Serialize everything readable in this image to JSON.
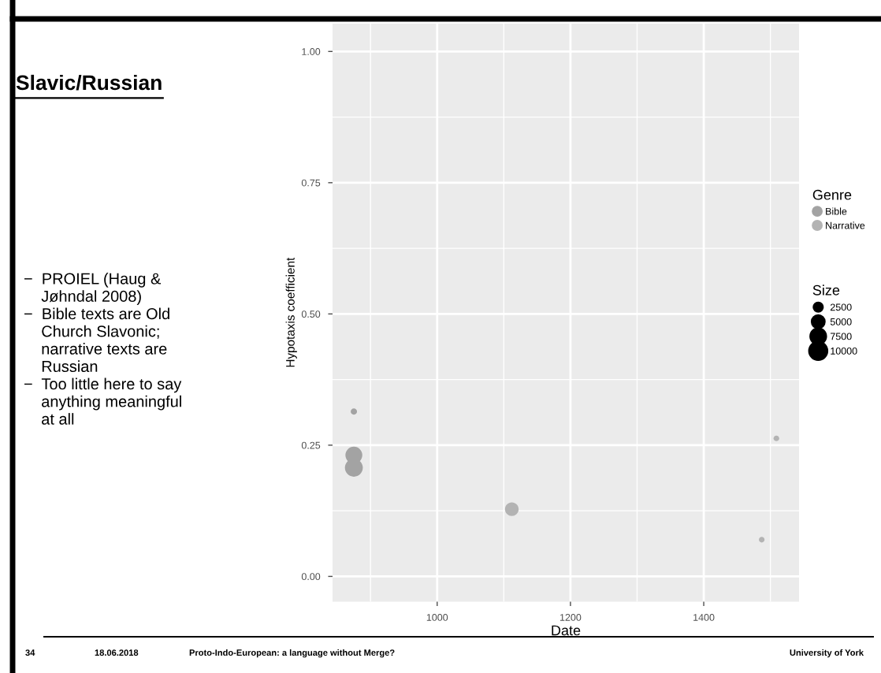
{
  "chart_data": {
    "type": "bubble",
    "title": "Slavic/Russian",
    "xlabel": "Date",
    "ylabel": "Hypotaxis coefficient",
    "legend_title": "Genre",
    "annotations": [
      "−  PROIEL (Haug &\n    Jøhndal 2008)\n−  Bible texts are Old\n    Church Slavonic;\n    narrative texts are\n    Russian\n−  Too little here to say\n    anything meaningful\n    at all",
      "34",
      "18.06.2018",
      "Proto-Indo-European: a language without Merge?",
      "University of York",
      "Size"
    ],
    "series": [
      {
        "name": "Bible",
        "color": "#a3a3a3",
        "x": [
          875,
          875,
          875
        ],
        "values": [
          0.314,
          0.231,
          0.207
        ],
        "sizes": [
          1250,
          8900,
          10000
        ]
      },
      {
        "name": "Narrative",
        "color": "#b3b3b3",
        "x": [
          1112,
          1487,
          1509
        ],
        "values": [
          0.128,
          0.07,
          0.263
        ],
        "sizes": [
          5800,
          1000,
          1000
        ]
      }
    ],
    "size_legend": [
      2500,
      5000,
      7500,
      10000
    ],
    "xlim": [
      843,
      1543
    ],
    "xticks": [
      1000,
      1200,
      1400
    ],
    "ylim": [
      -0.048,
      1.053
    ],
    "yticks": [
      {
        "value": 0,
        "label": "0.00"
      },
      {
        "value": 0.25,
        "label": "0.25"
      },
      {
        "value": 0.5,
        "label": "0.50"
      },
      {
        "value": 0.75,
        "label": "0.75"
      },
      {
        "value": 1,
        "label": "1.00"
      }
    ],
    "grid": true,
    "legend": "right",
    "marker": "circle"
  }
}
